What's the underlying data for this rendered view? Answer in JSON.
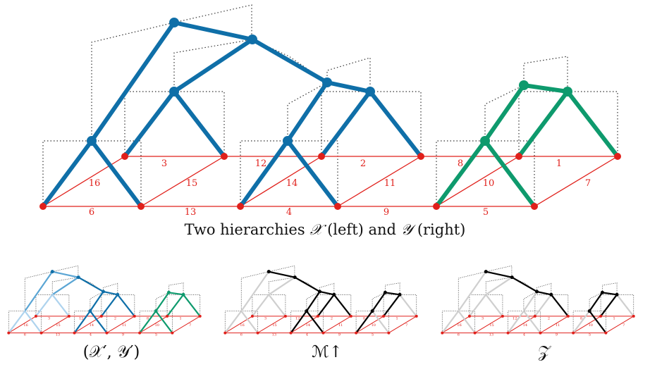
{
  "main_caption": {
    "prefix": "Two hierarchies",
    "x_symbol": "𝒳",
    "left_word": "(left) and",
    "y_symbol": "𝒴",
    "right_word": "(right)"
  },
  "edge_labels": [
    "6",
    "13",
    "4",
    "9",
    "5",
    "16",
    "15",
    "14",
    "11",
    "10",
    "7",
    "3",
    "12",
    "2",
    "8",
    "1"
  ],
  "bottom_captions": {
    "left": "(𝒳′, 𝒴′)",
    "middle": "ℳ↑",
    "right": "𝒵"
  },
  "colors": {
    "hierarchy_x": "#0f6fa8",
    "hierarchy_y": "#0e9a6d",
    "graph": "#e0201b",
    "dotted": "#333333",
    "faded": "#cfcfcf",
    "black": "#000000",
    "light_blue": "#aed3ee",
    "mid_blue": "#5aa5d4"
  }
}
